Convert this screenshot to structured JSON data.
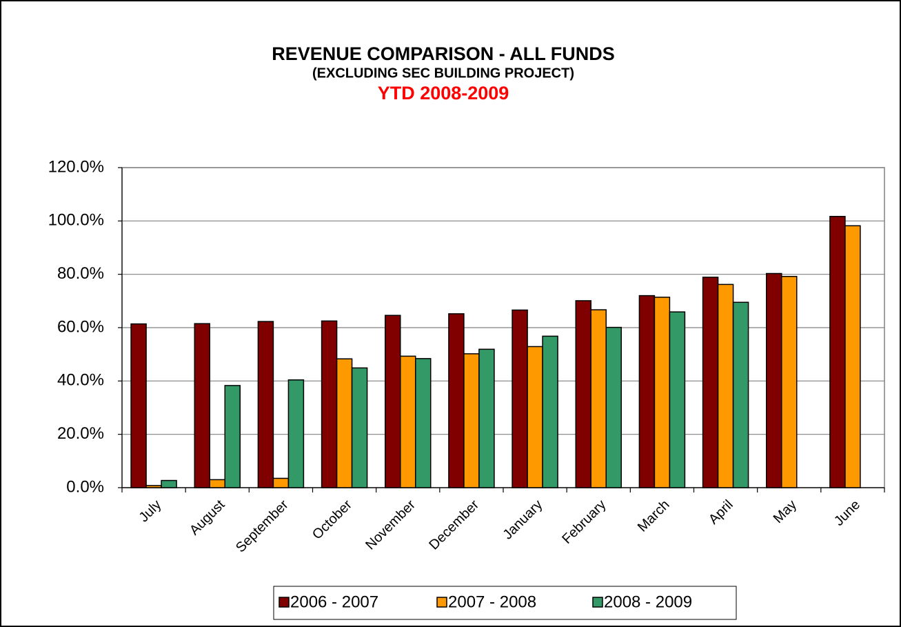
{
  "chart_data": {
    "type": "bar",
    "title": "REVENUE COMPARISON - ALL FUNDS",
    "subtitle": [
      "(EXCLUDING SEC BUILDING PROJECT)",
      "YTD 2008-2009"
    ],
    "categories": [
      "July",
      "August",
      "September",
      "October",
      "November",
      "December",
      "January",
      "February",
      "March",
      "April",
      "May",
      "June"
    ],
    "series": [
      {
        "name": "2006 - 2007",
        "color": "#800000",
        "values": [
          61.4,
          61.5,
          62.3,
          62.5,
          64.6,
          65.2,
          66.6,
          70.1,
          72.0,
          78.9,
          80.3,
          101.7
        ]
      },
      {
        "name": "2007 - 2008",
        "color": "#ff9900",
        "values": [
          0.8,
          3.0,
          3.5,
          48.3,
          49.3,
          50.2,
          52.9,
          66.7,
          71.4,
          76.2,
          79.2,
          98.2
        ]
      },
      {
        "name": "2008 - 2009",
        "color": "#339966",
        "values": [
          2.7,
          38.3,
          40.4,
          44.9,
          48.4,
          51.9,
          56.8,
          60.1,
          65.9,
          69.5,
          null,
          null
        ]
      }
    ],
    "ylim": [
      0,
      120
    ],
    "yticks": [
      {
        "value": 0,
        "label": "0.0%"
      },
      {
        "value": 20,
        "label": "20.0%"
      },
      {
        "value": 40,
        "label": "40.0%"
      },
      {
        "value": 60,
        "label": "60.0%"
      },
      {
        "value": 80,
        "label": "80.0%"
      },
      {
        "value": 100,
        "label": "100.0%"
      },
      {
        "value": 120,
        "label": "120.0%"
      }
    ],
    "grid": true,
    "legend": "bottom"
  }
}
